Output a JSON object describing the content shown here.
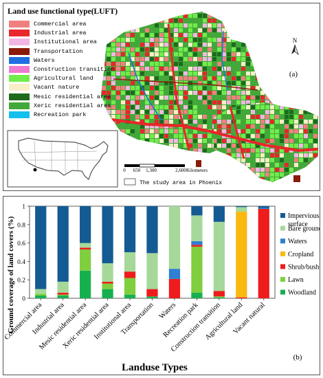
{
  "map": {
    "legend_title": "Land use functional type(LUFT)",
    "legend": [
      {
        "label": "Commercial area",
        "color": "#f08080"
      },
      {
        "label": "Industrial area",
        "color": "#e8262b"
      },
      {
        "label": "Institutional area",
        "color": "#f2b6e4"
      },
      {
        "label": "Transportation",
        "color": "#8b1a0a"
      },
      {
        "label": "Waters",
        "color": "#1f6fe0"
      },
      {
        "label": "Construction transition",
        "color": "#f07ad0"
      },
      {
        "label": "Agricultural land",
        "color": "#72ec4c"
      },
      {
        "label": "Vacant nature",
        "color": "#f8eec8"
      },
      {
        "label": "Mesic residential area",
        "color": "#1e6b1e"
      },
      {
        "label": "Xeric residential area",
        "color": "#43a83a"
      },
      {
        "label": "Recreation park",
        "color": "#12c0ee"
      }
    ],
    "north_label": "N",
    "panel_label": "(a)",
    "scale_ticks": [
      "0",
      "650",
      "1,300",
      "2,600"
    ],
    "scale_unit": "Kilometers",
    "study_area_label": "The study area in Phoenix"
  },
  "chart_data": {
    "type": "bar",
    "stacked": true,
    "categories": [
      "Commercial area",
      "Industrial area",
      "Mesic residential area",
      "Xeric residential area",
      "Institutional area",
      "Transportation",
      "Waters",
      "Recreation park",
      "Construction transition",
      "Agricultural land",
      "Vacant natural"
    ],
    "series": [
      {
        "name": "Woodland",
        "color": "#17b050",
        "values": [
          0.03,
          0.03,
          0.3,
          0.1,
          0.04,
          0.02,
          0.0,
          0.06,
          0.01,
          0.0,
          0.0
        ]
      },
      {
        "name": "Lawn",
        "color": "#7fcf3f",
        "values": [
          0.02,
          0.01,
          0.23,
          0.06,
          0.18,
          0.0,
          0.0,
          0.5,
          0.01,
          0.0,
          0.0
        ]
      },
      {
        "name": "Shrub/bush",
        "color": "#ee1c1c",
        "values": [
          0.0,
          0.02,
          0.02,
          0.02,
          0.07,
          0.08,
          0.21,
          0.02,
          0.06,
          0.01,
          0.97
        ]
      },
      {
        "name": "Cropland",
        "color": "#fbb80f",
        "values": [
          0.0,
          0.0,
          0.0,
          0.0,
          0.0,
          0.0,
          0.0,
          0.0,
          0.0,
          0.93,
          0.0
        ]
      },
      {
        "name": "Waters",
        "color": "#2f7fd3",
        "values": [
          0.0,
          0.0,
          0.0,
          0.0,
          0.0,
          0.0,
          0.11,
          0.04,
          0.0,
          0.0,
          0.01
        ]
      },
      {
        "name": "Bare ground",
        "color": "#a6d89a",
        "values": [
          0.05,
          0.12,
          0.05,
          0.2,
          0.21,
          0.39,
          0.68,
          0.28,
          0.75,
          0.05,
          0.0
        ]
      },
      {
        "name": "Impervious surface",
        "color": "#145b93",
        "values": [
          0.9,
          0.82,
          0.4,
          0.62,
          0.5,
          0.51,
          0.0,
          0.1,
          0.17,
          0.01,
          0.02
        ]
      }
    ],
    "ylabel": "Ground coverage of land covers (%)",
    "xlabel": "Landuse Types",
    "ylim": [
      0,
      1
    ],
    "yticks": [
      "0",
      "0.2",
      "0.4",
      "0.6",
      "0.8",
      "1"
    ],
    "legend_placement": "right",
    "panel_label": "(b)"
  }
}
